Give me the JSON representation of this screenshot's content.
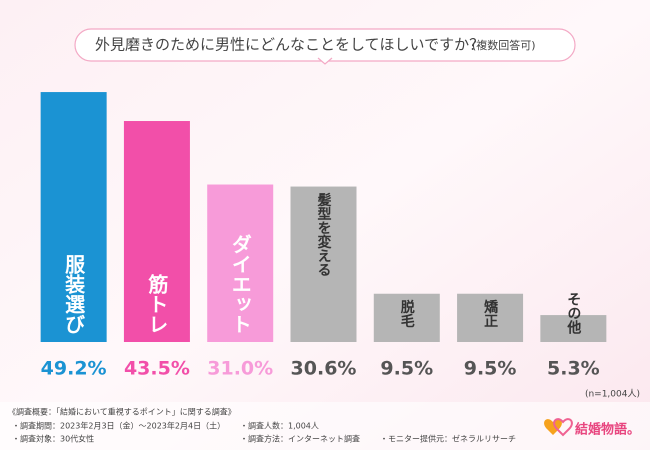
{
  "chart_data": {
    "type": "bar",
    "title": "外見磨きのために男性にどんなことをしてほしいですか？",
    "title_note": "(複数回答可)",
    "categories": [
      "服装選び",
      "筋トレ",
      "ダイエット",
      "髪型を変える",
      "脱毛",
      "矯正",
      "その他"
    ],
    "values": [
      49.2,
      43.5,
      31.0,
      30.6,
      9.5,
      9.5,
      5.3
    ],
    "value_labels": [
      "49.2%",
      "43.5%",
      "31.0%",
      "30.6%",
      "9.5%",
      "9.5%",
      "5.3%"
    ],
    "colors": [
      "#1b93d3",
      "#f24fa9",
      "#f79bd9",
      "#b5b5b5",
      "#b5b5b5",
      "#b5b5b5",
      "#b5b5b5"
    ],
    "value_label_colors": [
      "#1b93d3",
      "#f24fa9",
      "#f79bd9",
      "#555555",
      "#555555",
      "#555555",
      "#555555"
    ],
    "ylim": [
      0,
      50
    ],
    "sample_note": "(n=1,004人)"
  },
  "footer": {
    "survey_title": "《調査概要：「結婚において重視するポイント」に関する調査》",
    "period": "・調査期間：2023年2月3日（金）〜2023年2月4日（土）",
    "target": "・調査対象：30代女性",
    "count": "・調査人数：1,004人",
    "method": "・調査方法：インターネット調査",
    "provider": "・モニター提供元：ゼネラルリサーチ",
    "logo": "結婚物語。"
  }
}
